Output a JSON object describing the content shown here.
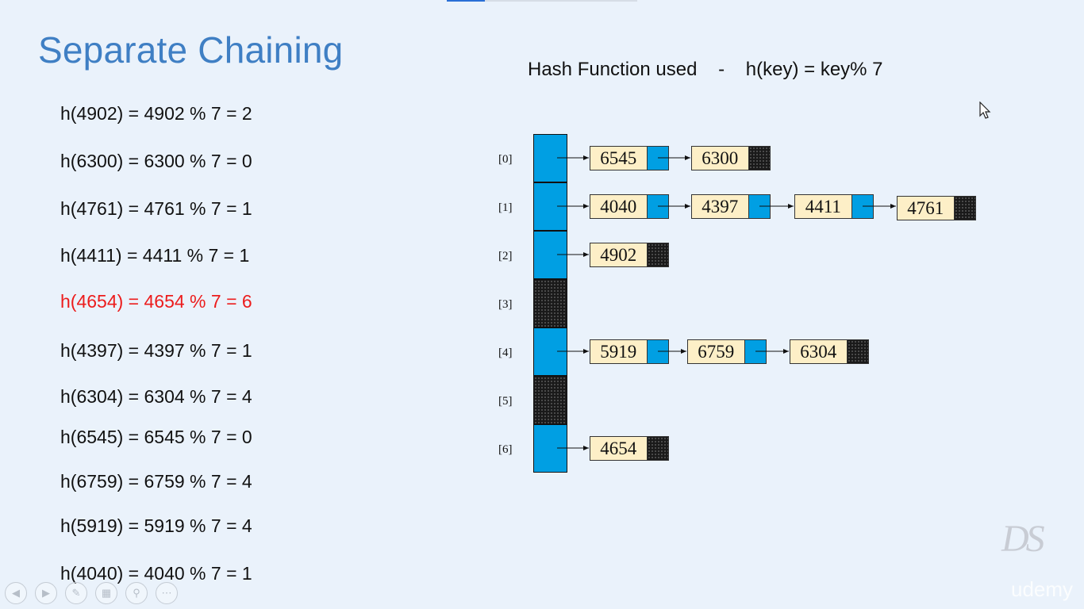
{
  "title": "Separate Chaining",
  "hash_function": "Hash Function used    -    h(key) = key% 7",
  "equations": [
    {
      "text": "h(4902) = 4902 % 7 = 2",
      "highlight": false
    },
    {
      "text": "h(6300) = 6300 % 7 = 0",
      "highlight": false
    },
    {
      "text": "h(4761) = 4761 % 7 = 1",
      "highlight": false
    },
    {
      "text": "h(4411) = 4411 % 7 = 1",
      "highlight": false
    },
    {
      "text": "h(4654) = 4654 % 7 = 6",
      "highlight": true
    },
    {
      "text": "h(4397) = 4397 % 7 = 1",
      "highlight": false
    },
    {
      "text": "h(6304) = 6304 % 7 = 4",
      "highlight": false
    },
    {
      "text": "h(6545) = 6545 % 7 = 0",
      "highlight": false
    },
    {
      "text": "h(6759) = 6759 % 7 = 4",
      "highlight": false
    },
    {
      "text": "h(5919) = 5919 % 7 = 4",
      "highlight": false
    },
    {
      "text": "h(4040) = 4040 % 7 = 1",
      "highlight": false
    }
  ],
  "table": [
    {
      "label": "[0]",
      "chain": [
        "6545",
        "6300"
      ]
    },
    {
      "label": "[1]",
      "chain": [
        "4040",
        "4397",
        "4411",
        "4761"
      ]
    },
    {
      "label": "[2]",
      "chain": [
        "4902"
      ]
    },
    {
      "label": "[3]",
      "chain": []
    },
    {
      "label": "[4]",
      "chain": [
        "5919",
        "6759",
        "6304"
      ]
    },
    {
      "label": "[5]",
      "chain": []
    },
    {
      "label": "[6]",
      "chain": [
        "4654"
      ]
    }
  ],
  "colors": {
    "title": "#3f7fc4",
    "highlight": "#ec1c1c",
    "bucket": "#009fe3",
    "node_value": "#fdefc7",
    "null_pointer": "#1a1a1a"
  },
  "logo_text": "DS",
  "watermark": "udemy",
  "player_controls": [
    "previous-icon",
    "next-icon",
    "pen-icon",
    "slides-icon",
    "zoom-icon",
    "more-icon"
  ]
}
